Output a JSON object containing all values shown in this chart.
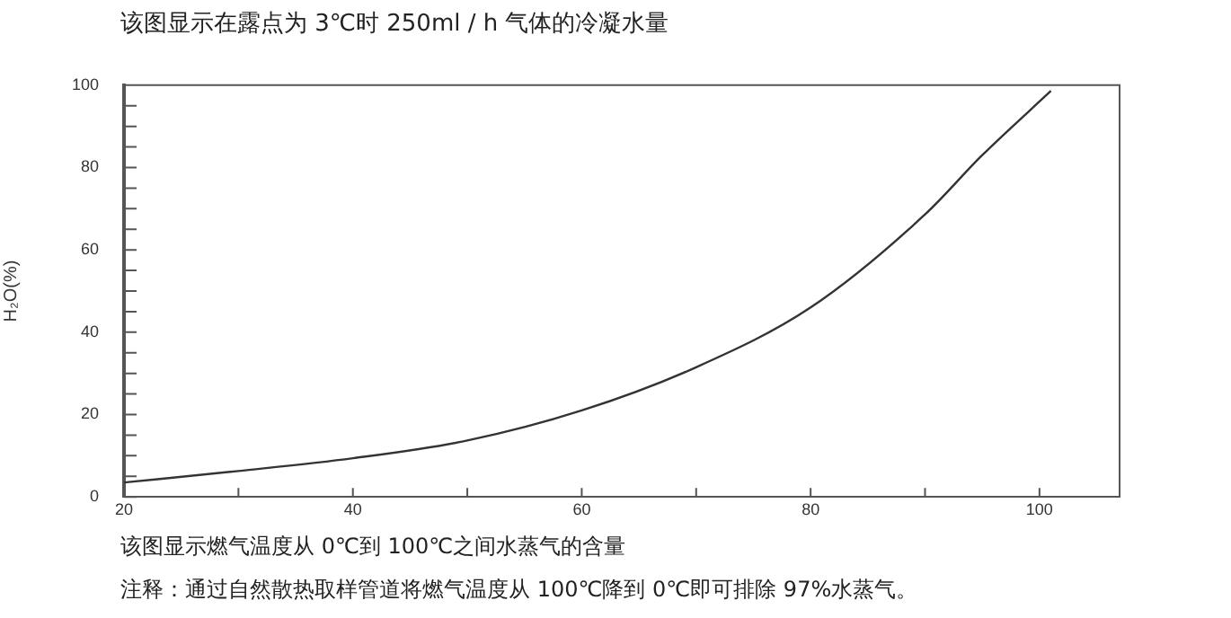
{
  "chart_data": {
    "type": "line",
    "title": "该图显示在露点为 3℃时 250ml / h 气体的冷凝水量",
    "ylabel": "H₂O(%)",
    "annotations": [
      "该图显示燃气温度从 0℃到 100℃之间水蒸气的含量",
      "注释：通过自然散热取样管道将燃气温度从 100℃降到 0℃即可排除 97%水蒸气。"
    ],
    "x": [
      20,
      30,
      40,
      50,
      60,
      70,
      80,
      90,
      95,
      101
    ],
    "series": [
      {
        "color": "#333333",
        "values": [
          3.5,
          6.3,
          9.4,
          13.7,
          21,
          31.5,
          46,
          68.6,
          83,
          98.6
        ]
      }
    ],
    "xlim": [
      20,
      107
    ],
    "xticks": [
      20,
      {
        "value": 30,
        "label": null
      },
      40,
      {
        "value": 50,
        "label": null
      },
      60,
      {
        "value": 70,
        "label": null
      },
      80,
      {
        "value": 90,
        "label": null
      },
      100
    ],
    "ylim": [
      0,
      100
    ],
    "yticks": [
      0,
      {
        "value": 5,
        "label": null
      },
      {
        "value": 10,
        "label": null
      },
      {
        "value": 15,
        "label": null
      },
      20,
      {
        "value": 25,
        "label": null
      },
      {
        "value": 30,
        "label": null
      },
      {
        "value": 35,
        "label": null
      },
      40,
      {
        "value": 45,
        "label": null
      },
      {
        "value": 50,
        "label": null
      },
      {
        "value": 55,
        "label": null
      },
      60,
      {
        "value": 65,
        "label": null
      },
      {
        "value": 70,
        "label": null
      },
      {
        "value": 75,
        "label": null
      },
      80,
      {
        "value": 85,
        "label": null
      },
      {
        "value": 90,
        "label": null
      },
      {
        "value": 95,
        "label": null
      },
      100
    ],
    "grid": false,
    "legend": false,
    "marker": "none",
    "line_style": "solid"
  }
}
